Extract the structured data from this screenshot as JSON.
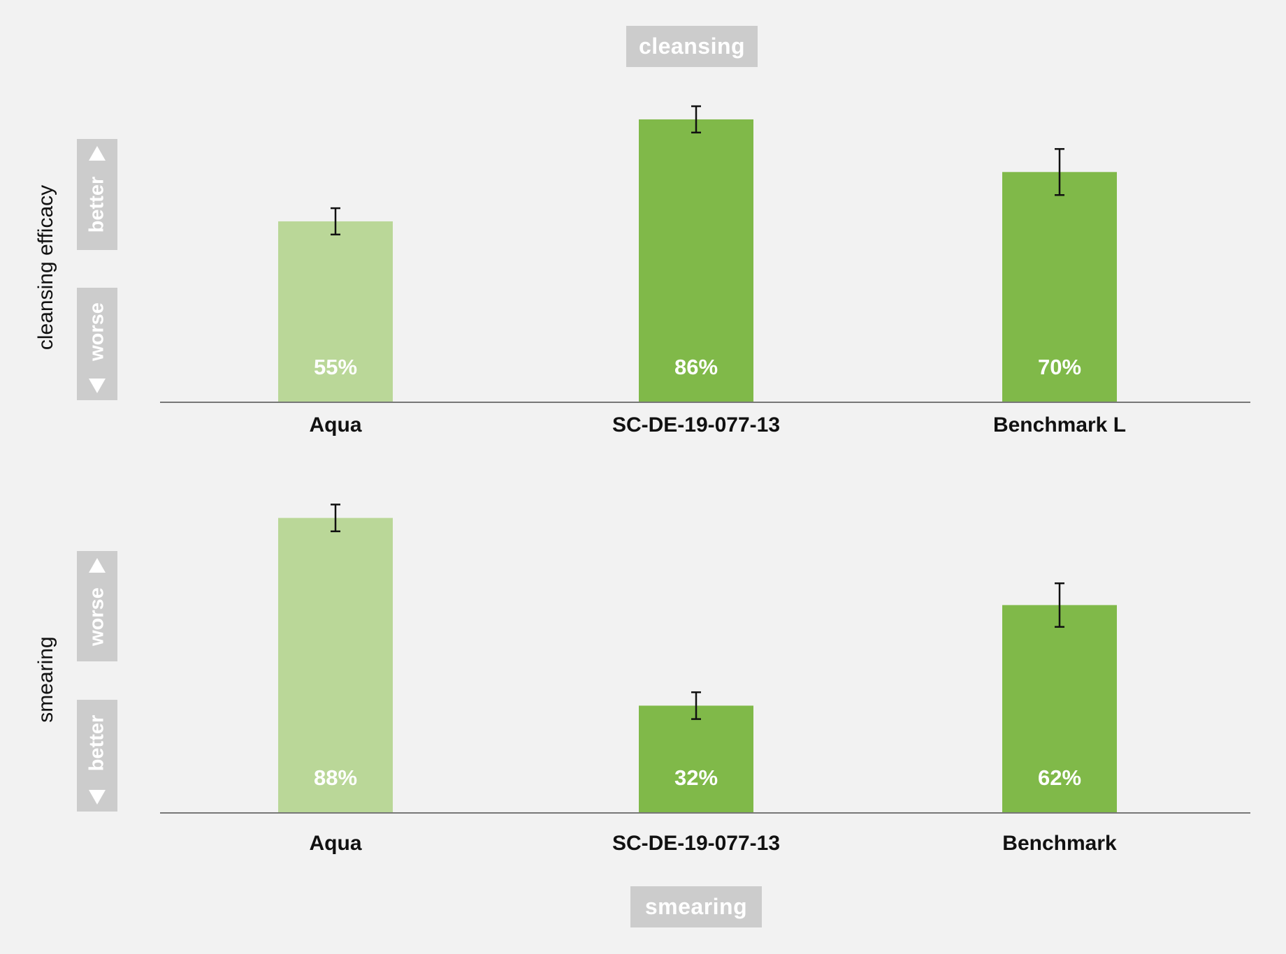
{
  "panels": {
    "top_tag": "cleansing",
    "bottom_tag": "smearing",
    "top_ylabel": "cleansing efficacy",
    "bottom_ylabel": "smearing",
    "top_direction": {
      "upper": "better",
      "lower": "worse"
    },
    "bottom_direction": {
      "upper": "worse",
      "lower": "better"
    }
  },
  "colors": {
    "background": "#f2f2f2",
    "bar_light": "#bad798",
    "bar_dark": "#80b949",
    "tag_bg": "#cccccc",
    "axis": "#777777",
    "error_bar": "#111111"
  },
  "chart_data": [
    {
      "type": "bar",
      "title": "cleansing",
      "ylabel": "cleansing efficacy",
      "categories": [
        "Aqua",
        "SC-DE-19-077-13",
        "Benchmark L"
      ],
      "values": [
        55,
        86,
        70
      ],
      "value_labels": [
        "55%",
        "86%",
        "70%"
      ],
      "error": [
        4,
        4,
        7
      ],
      "bar_colors": [
        "#bad798",
        "#80b949",
        "#80b949"
      ],
      "ylim": [
        0,
        100
      ]
    },
    {
      "type": "bar",
      "title": "smearing",
      "ylabel": "smearing",
      "categories": [
        "Aqua",
        "SC-DE-19-077-13",
        "Benchmark"
      ],
      "values": [
        88,
        32,
        62
      ],
      "value_labels": [
        "88%",
        "32%",
        "62%"
      ],
      "error": [
        4,
        4,
        6.5
      ],
      "bar_colors": [
        "#bad798",
        "#80b949",
        "#80b949"
      ],
      "ylim": [
        0,
        100
      ]
    }
  ]
}
